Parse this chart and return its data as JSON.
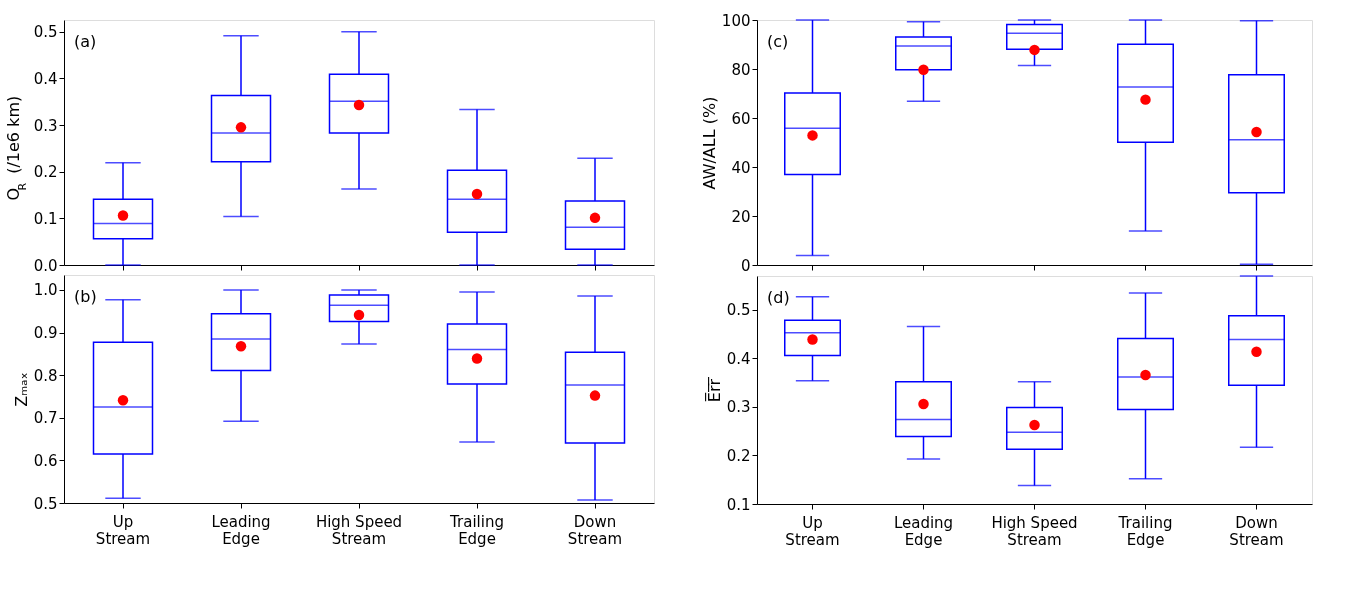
{
  "chart_data": [
    {
      "type": "box",
      "ylabel": "O$_{R}$ (/1e6 km)",
      "annotations": [
        "(a)"
      ],
      "tick_labels": "y",
      "grid": false,
      "categories": [
        "Up Stream",
        "Leading Edge",
        "High Speed Stream",
        "Trailing Edge",
        "Down Stream"
      ],
      "ylim": [
        0,
        0.525
      ],
      "yticks": [
        {
          "value": 0,
          "label": "0.0"
        },
        0.1,
        0.2,
        0.3,
        0.4,
        0.5
      ],
      "series": [
        {
          "type": "box",
          "color": "#0000ff",
          "boxes": [
            {
              "low": 0,
              "q1": 0.056,
              "median": 0.089,
              "q3": 0.141,
              "high": 0.219
            },
            {
              "low": 0.104,
              "q1": 0.221,
              "median": 0.283,
              "q3": 0.363,
              "high": 0.491
            },
            {
              "low": 0.163,
              "q1": 0.283,
              "median": 0.351,
              "q3": 0.409,
              "high": 0.5
            },
            {
              "low": 0,
              "q1": 0.07,
              "median": 0.141,
              "q3": 0.203,
              "high": 0.333
            },
            {
              "low": 0,
              "q1": 0.034,
              "median": 0.081,
              "q3": 0.137,
              "high": 0.229
            }
          ]
        },
        {
          "type": "scatter",
          "color": "#ff0000",
          "marker": "circle",
          "x": [
            "Up Stream",
            "Leading Edge",
            "High Speed Stream",
            "Trailing Edge",
            "Down Stream"
          ],
          "values": [
            0.106,
            0.295,
            0.343,
            0.152,
            0.101
          ]
        }
      ]
    },
    {
      "type": "box",
      "ylabel": "AW/ALL (%)",
      "annotations": [
        "(c)"
      ],
      "tick_labels": "y",
      "grid": false,
      "categories": [
        "Up Stream",
        "Leading Edge",
        "High Speed Stream",
        "Trailing Edge",
        "Down Stream"
      ],
      "ylim": [
        0,
        100
      ],
      "yticks": [
        0,
        20,
        40,
        60,
        80,
        100
      ],
      "series": [
        {
          "type": "box",
          "color": "#0000ff",
          "boxes": [
            {
              "low": 3.9,
              "q1": 36.9,
              "median": 55.8,
              "q3": 70.2,
              "high": 100
            },
            {
              "low": 66.8,
              "q1": 79.7,
              "median": 89.4,
              "q3": 93.1,
              "high": 99.3
            },
            {
              "low": 81.4,
              "q1": 88.1,
              "median": 94.6,
              "q3": 98.2,
              "high": 100
            },
            {
              "low": 13.9,
              "q1": 50.1,
              "median": 72.7,
              "q3": 90.1,
              "high": 100
            },
            {
              "low": 0.3,
              "q1": 29.5,
              "median": 51.1,
              "q3": 77.7,
              "high": 99.7
            }
          ]
        },
        {
          "type": "scatter",
          "color": "#ff0000",
          "marker": "circle",
          "x": [
            "Up Stream",
            "Leading Edge",
            "High Speed Stream",
            "Trailing Edge",
            "Down Stream"
          ],
          "values": [
            52.9,
            79.7,
            87.8,
            67.5,
            54.3
          ]
        }
      ]
    },
    {
      "type": "box",
      "ylabel": "Zₘₐₓ",
      "annotations": [
        "(b)"
      ],
      "grid": false,
      "categories": [
        "Up Stream",
        "Leading Edge",
        "High Speed Stream",
        "Trailing Edge",
        "Down Stream"
      ],
      "ylim": [
        0.5,
        1.035
      ],
      "yticks": [
        0.5,
        0.6,
        0.7,
        0.8,
        0.9,
        {
          "value": 1,
          "label": "1.0"
        }
      ],
      "series": [
        {
          "type": "box",
          "color": "#0000ff",
          "boxes": [
            {
              "low": 0.511,
              "q1": 0.615,
              "median": 0.725,
              "q3": 0.877,
              "high": 0.977
            },
            {
              "low": 0.692,
              "q1": 0.811,
              "median": 0.885,
              "q3": 0.944,
              "high": 1.0
            },
            {
              "low": 0.873,
              "q1": 0.926,
              "median": 0.964,
              "q3": 0.988,
              "high": 1.0
            },
            {
              "low": 0.643,
              "q1": 0.779,
              "median": 0.86,
              "q3": 0.92,
              "high": 0.995
            },
            {
              "low": 0.507,
              "q1": 0.641,
              "median": 0.777,
              "q3": 0.854,
              "high": 0.986
            }
          ]
        },
        {
          "type": "scatter",
          "color": "#ff0000",
          "marker": "circle",
          "x": [
            "Up Stream",
            "Leading Edge",
            "High Speed Stream",
            "Trailing Edge",
            "Down Stream"
          ],
          "values": [
            0.741,
            0.868,
            0.941,
            0.839,
            0.752
          ]
        }
      ]
    },
    {
      "type": "box",
      "ylabel": "E̅r̅r̅",
      "annotations": [
        "(d)"
      ],
      "grid": false,
      "categories": [
        "Up Stream",
        "Leading Edge",
        "High Speed Stream",
        "Trailing Edge",
        "Down Stream"
      ],
      "ylim": [
        0.1,
        0.57
      ],
      "yticks": [
        0.1,
        0.2,
        0.3,
        0.4,
        0.5
      ],
      "series": [
        {
          "type": "box",
          "color": "#0000ff",
          "boxes": [
            {
              "low": 0.354,
              "q1": 0.406,
              "median": 0.453,
              "q3": 0.479,
              "high": 0.527
            },
            {
              "low": 0.193,
              "q1": 0.239,
              "median": 0.274,
              "q3": 0.352,
              "high": 0.466
            },
            {
              "low": 0.138,
              "q1": 0.213,
              "median": 0.248,
              "q3": 0.299,
              "high": 0.352
            },
            {
              "low": 0.152,
              "q1": 0.295,
              "median": 0.362,
              "q3": 0.441,
              "high": 0.535
            },
            {
              "low": 0.217,
              "q1": 0.345,
              "median": 0.439,
              "q3": 0.488,
              "high": 0.57
            }
          ]
        },
        {
          "type": "scatter",
          "color": "#ff0000",
          "marker": "circle",
          "x": [
            "Up Stream",
            "Leading Edge",
            "High Speed Stream",
            "Trailing Edge",
            "Down Stream"
          ],
          "values": [
            0.439,
            0.306,
            0.263,
            0.366,
            0.414
          ]
        }
      ]
    }
  ]
}
